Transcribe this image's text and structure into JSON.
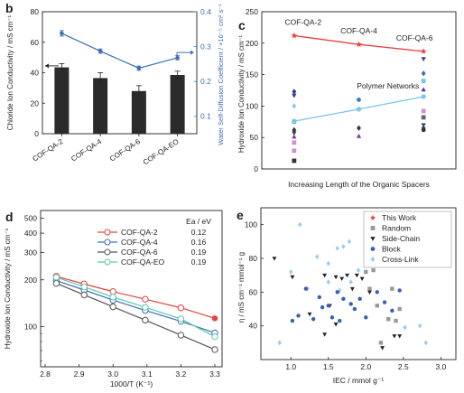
{
  "panel_letters": {
    "b": "b",
    "c": "c",
    "d": "d",
    "e": "e"
  },
  "chart_data": [
    {
      "id": "b",
      "type": "bar",
      "categories": [
        "COF-QA-2",
        "COF-QA-4",
        "COF-QA-6",
        "COF-QA-EO"
      ],
      "bars": {
        "name": "Chloride Ion Conductivity",
        "values": [
          43.5,
          36.5,
          28,
          38.5
        ],
        "errors": [
          2.5,
          3.5,
          3.5,
          2.5
        ]
      },
      "line": {
        "name": "Water Self-Diffusion Coefficient",
        "values": [
          0.338,
          0.287,
          0.238,
          0.268
        ],
        "errors": [
          0.008,
          0.006,
          0.006,
          0.006
        ]
      },
      "ylabel": "Chloride Ion Conductivity / mS cm⁻¹",
      "y2label": "Water Self-Diffusion Coefficient / ×10⁻⁵ cm² s⁻¹",
      "ylim": [
        0,
        80
      ],
      "yticks": [
        "0",
        "20",
        "40",
        "60",
        "80"
      ],
      "y2lim": [
        0.05,
        0.4
      ],
      "y2ticks": [
        "0.1",
        "0.2",
        "0.3",
        "0.4"
      ],
      "colors": {
        "bar": "#2b2b2b",
        "line": "#3d6fb6",
        "axis2": "#3d6fb6"
      }
    },
    {
      "id": "c",
      "type": "scatter",
      "xlabel": "Increasing Length of the Organic Spacers",
      "ylabel": "Hydroxide Ion Conductivity / mS cm⁻¹",
      "ylim": [
        0,
        250
      ],
      "yticks": [
        "0",
        "50",
        "100",
        "150",
        "200",
        "250"
      ],
      "cof_series": {
        "labels": [
          "COF-QA-2",
          "COF-QA-4",
          "COF-QA-6"
        ],
        "x": [
          1,
          2,
          3
        ],
        "values": [
          212,
          198,
          187
        ],
        "color": "#e8413c"
      },
      "polymer_series": {
        "label": "Polymer Networks",
        "x": [
          1,
          2,
          3
        ],
        "values": [
          76,
          95,
          115
        ],
        "color": "#79c6ec"
      },
      "scatter_points": [
        {
          "x": 1,
          "y": 123,
          "c": "#2e3a8c",
          "m": "diamond"
        },
        {
          "x": 1,
          "y": 117,
          "c": "#2e3a8c",
          "m": "triangle-down"
        },
        {
          "x": 1,
          "y": 100,
          "c": "#8fc3e8",
          "m": "diamond"
        },
        {
          "x": 1,
          "y": 75,
          "c": "#86aedc",
          "m": "square"
        },
        {
          "x": 1,
          "y": 62,
          "c": "#333333",
          "m": "diamond"
        },
        {
          "x": 1,
          "y": 57,
          "c": "#444444",
          "m": "triangle-down"
        },
        {
          "x": 1,
          "y": 51,
          "c": "#7b3aa3",
          "m": "triangle"
        },
        {
          "x": 1,
          "y": 42,
          "c": "#d08fd0",
          "m": "square"
        },
        {
          "x": 1,
          "y": 29,
          "c": "#d08fd0",
          "m": "square"
        },
        {
          "x": 1,
          "y": 13,
          "c": "#333333",
          "m": "square"
        },
        {
          "x": 2,
          "y": 110,
          "c": "#3a78c2",
          "m": "circle"
        },
        {
          "x": 2,
          "y": 65,
          "c": "#333333",
          "m": "diamond"
        },
        {
          "x": 2,
          "y": 52,
          "c": "#7b3aa3",
          "m": "triangle"
        },
        {
          "x": 3,
          "y": 175,
          "c": "#3b3f9e",
          "m": "triangle-down"
        },
        {
          "x": 3,
          "y": 152,
          "c": "#3a6cb8",
          "m": "diamond"
        },
        {
          "x": 3,
          "y": 140,
          "c": "#79c6ec",
          "m": "square"
        },
        {
          "x": 3,
          "y": 126,
          "c": "#5a3aa0",
          "m": "triangle"
        },
        {
          "x": 3,
          "y": 92,
          "c": "#d08fd0",
          "m": "square"
        },
        {
          "x": 3,
          "y": 82,
          "c": "#666666",
          "m": "square"
        },
        {
          "x": 3,
          "y": 70,
          "c": "#444444",
          "m": "triangle-down"
        },
        {
          "x": 3,
          "y": 65,
          "c": "#2e3a8c",
          "m": "diamond"
        },
        {
          "x": 3,
          "y": 62,
          "c": "#333333",
          "m": "circle"
        }
      ]
    },
    {
      "id": "d",
      "type": "line",
      "xlabel": "1000/T (K⁻¹)",
      "ylabel": "Hydroxide Ion Conductivity / mS cm⁻¹",
      "xlim": [
        2.8,
        3.3
      ],
      "xticks": [
        "2.8",
        "2.9",
        "3.0",
        "3.1",
        "3.2",
        "3.3"
      ],
      "ylim": [
        55,
        560
      ],
      "ytick_values": [
        100,
        200,
        300,
        400,
        500
      ],
      "yticks": [
        "100",
        "200",
        "300",
        "400",
        "500"
      ],
      "x": [
        2.833,
        2.915,
        3.0,
        3.095,
        3.2,
        3.3
      ],
      "legend_header": {
        "name": "",
        "value": "Ea / eV"
      },
      "series": [
        {
          "name": "COF-QA-2",
          "ea": "0.12",
          "color": "#e8413c",
          "values": [
            211,
            188,
            168,
            150,
            132,
            113
          ]
        },
        {
          "name": "COF-QA-4",
          "ea": "0.16",
          "color": "#3d6fb6",
          "values": [
            198,
            172,
            148,
            127,
            108,
            91
          ]
        },
        {
          "name": "COF-QA-6",
          "ea": "0.19",
          "color": "#555555",
          "values": [
            190,
            160,
            134,
            110,
            88,
            71
          ]
        },
        {
          "name": "COF-QA-EO",
          "ea": "0.19",
          "color": "#5ac8a8",
          "values": [
            208,
            180,
            155,
            133,
            112,
            86
          ]
        }
      ]
    },
    {
      "id": "e",
      "type": "scatter",
      "xlabel": "IEC / mmol g⁻¹",
      "ylabel": "η / mS cm⁻¹ mmol⁻¹ g",
      "xlim": [
        0.6,
        3.2
      ],
      "xtick_values": [
        1.0,
        1.5,
        2.0,
        2.5,
        3.0
      ],
      "xticks": [
        "1.0",
        "1.5",
        "2.0",
        "2.5",
        "3.0"
      ],
      "ylim": [
        20,
        110
      ],
      "ytick_values": [
        40,
        60,
        80,
        100
      ],
      "yticks": [
        "40",
        "60",
        "80",
        "100"
      ],
      "legend": [
        {
          "name": "This Work",
          "color": "#e8413c",
          "marker": "star"
        },
        {
          "name": "Random",
          "color": "#999999",
          "marker": "square"
        },
        {
          "name": "Side-Chain",
          "color": "#222222",
          "marker": "triangle-down"
        },
        {
          "name": "Block",
          "color": "#3a5fb0",
          "marker": "circle"
        },
        {
          "name": "Cross-Link",
          "color": "#9ccbf0",
          "marker": "diamond"
        }
      ],
      "series": [
        {
          "name": "This Work",
          "x": [
            2.07,
            2.2,
            2.12,
            2.08
          ],
          "y": [
            102,
            94,
            93,
            88
          ]
        },
        {
          "name": "Random",
          "x": [
            2.0,
            2.1,
            2.2,
            2.3,
            2.35,
            2.45,
            2.05,
            2.15,
            2.3,
            2.4,
            2.2
          ],
          "y": [
            72,
            73,
            76,
            77,
            62,
            50,
            62,
            52,
            44,
            43,
            30
          ]
        },
        {
          "name": "Side-Chain",
          "x": [
            0.78,
            1.02,
            1.25,
            1.45,
            1.6,
            1.75,
            1.45,
            1.68,
            1.82,
            1.95,
            2.05,
            2.22,
            2.38,
            2.45,
            1.52,
            1.88,
            1.6
          ],
          "y": [
            80,
            69,
            47,
            35,
            41,
            70,
            70,
            68,
            62,
            68,
            60,
            27,
            34,
            34,
            52,
            70,
            69
          ]
        },
        {
          "name": "Block",
          "x": [
            1.02,
            1.1,
            1.2,
            1.3,
            1.42,
            1.5,
            1.55,
            1.62,
            1.7,
            1.8,
            1.92,
            2.0,
            2.15,
            2.25,
            2.35,
            2.45,
            1.38,
            1.65,
            1.85
          ],
          "y": [
            43,
            46,
            62,
            44,
            51,
            52,
            45,
            60,
            56,
            53,
            56,
            45,
            60,
            54,
            49,
            61,
            57,
            43,
            50
          ]
        },
        {
          "name": "Cross-Link",
          "x": [
            0.85,
            1.0,
            1.12,
            1.22,
            1.35,
            1.5,
            1.62,
            1.7,
            1.78,
            1.9,
            1.5,
            1.65,
            1.8,
            2.52,
            2.72,
            2.8
          ],
          "y": [
            30,
            72,
            100,
            62,
            81,
            77,
            86,
            87,
            90,
            73,
            66,
            61,
            66,
            39,
            40,
            30
          ]
        }
      ]
    }
  ]
}
